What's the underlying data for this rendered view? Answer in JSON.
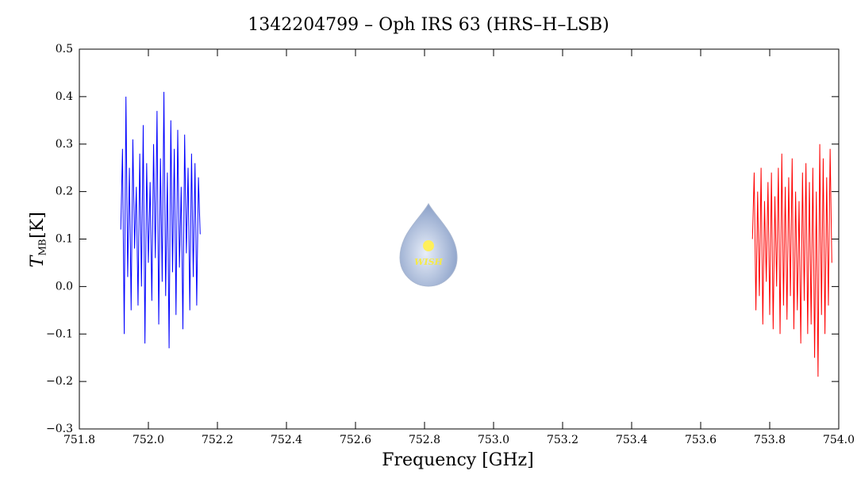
{
  "chart_data": {
    "type": "line",
    "title": "1342204799 – Oph IRS 63 (HRS–H–LSB)",
    "xlabel": "Frequency [GHz]",
    "ylabel": {
      "main": "T",
      "sub": "MB",
      "unit": "[K]"
    },
    "logo_text": "WISH",
    "xlim": [
      751.8,
      754.0
    ],
    "xticks": [
      751.8,
      {
        "value": 752.0,
        "label": "752.0"
      },
      752.2,
      752.4,
      752.6,
      752.8,
      {
        "value": 753.0,
        "label": "753.0"
      },
      753.2,
      753.4,
      753.6,
      753.8,
      {
        "value": 754.0,
        "label": "754.0"
      }
    ],
    "ylim": [
      -0.3,
      0.5
    ],
    "yticks": [
      {
        "value": -0.3,
        "label": "−0.3"
      },
      {
        "value": -0.2,
        "label": "−0.2"
      },
      {
        "value": -0.1,
        "label": "−0.1"
      },
      {
        "value": 0,
        "label": "0.0"
      },
      0.1,
      0.2,
      0.3,
      0.4,
      0.5
    ],
    "series": [
      {
        "color": "#0000ff",
        "x": [
          751.92,
          751.925,
          751.93,
          751.935,
          751.94,
          751.945,
          751.95,
          751.955,
          751.96,
          751.965,
          751.97,
          751.975,
          751.98,
          751.985,
          751.99,
          751.995,
          752.0,
          752.005,
          752.01,
          752.015,
          752.02,
          752.025,
          752.03,
          752.035,
          752.04,
          752.045,
          752.05,
          752.055,
          752.06,
          752.065,
          752.07,
          752.075,
          752.08,
          752.085,
          752.09,
          752.095,
          752.1,
          752.105,
          752.11,
          752.115,
          752.12,
          752.125,
          752.13,
          752.135,
          752.14,
          752.145,
          752.15
        ],
        "values": [
          0.12,
          0.29,
          -0.1,
          0.4,
          0.02,
          0.25,
          -0.05,
          0.31,
          0.08,
          0.21,
          -0.04,
          0.28,
          0.0,
          0.34,
          -0.12,
          0.26,
          0.05,
          0.22,
          -0.03,
          0.3,
          0.06,
          0.37,
          -0.08,
          0.27,
          0.01,
          0.41,
          -0.02,
          0.24,
          -0.13,
          0.35,
          0.03,
          0.29,
          -0.06,
          0.33,
          0.04,
          0.21,
          -0.09,
          0.32,
          0.07,
          0.25,
          -0.05,
          0.28,
          0.02,
          0.26,
          -0.04,
          0.23,
          0.11
        ]
      },
      {
        "color": "#ff0000",
        "x": [
          753.75,
          753.755,
          753.76,
          753.765,
          753.77,
          753.775,
          753.78,
          753.785,
          753.79,
          753.795,
          753.8,
          753.805,
          753.81,
          753.815,
          753.82,
          753.825,
          753.83,
          753.835,
          753.84,
          753.845,
          753.85,
          753.855,
          753.86,
          753.865,
          753.87,
          753.875,
          753.88,
          753.885,
          753.89,
          753.895,
          753.9,
          753.905,
          753.91,
          753.915,
          753.92,
          753.925,
          753.93,
          753.935,
          753.94,
          753.945,
          753.95,
          753.955,
          753.96,
          753.965,
          753.97,
          753.975,
          753.98
        ],
        "values": [
          0.1,
          0.24,
          -0.05,
          0.2,
          -0.02,
          0.25,
          -0.08,
          0.18,
          0.01,
          0.22,
          -0.06,
          0.24,
          -0.09,
          0.19,
          0.0,
          0.25,
          -0.1,
          0.28,
          -0.04,
          0.21,
          -0.07,
          0.23,
          -0.02,
          0.27,
          -0.09,
          0.2,
          -0.05,
          0.18,
          -0.12,
          0.24,
          -0.03,
          0.26,
          -0.1,
          0.22,
          -0.08,
          0.25,
          -0.15,
          0.2,
          -0.19,
          0.3,
          -0.06,
          0.27,
          -0.1,
          0.23,
          -0.04,
          0.29,
          0.05
        ]
      }
    ]
  }
}
